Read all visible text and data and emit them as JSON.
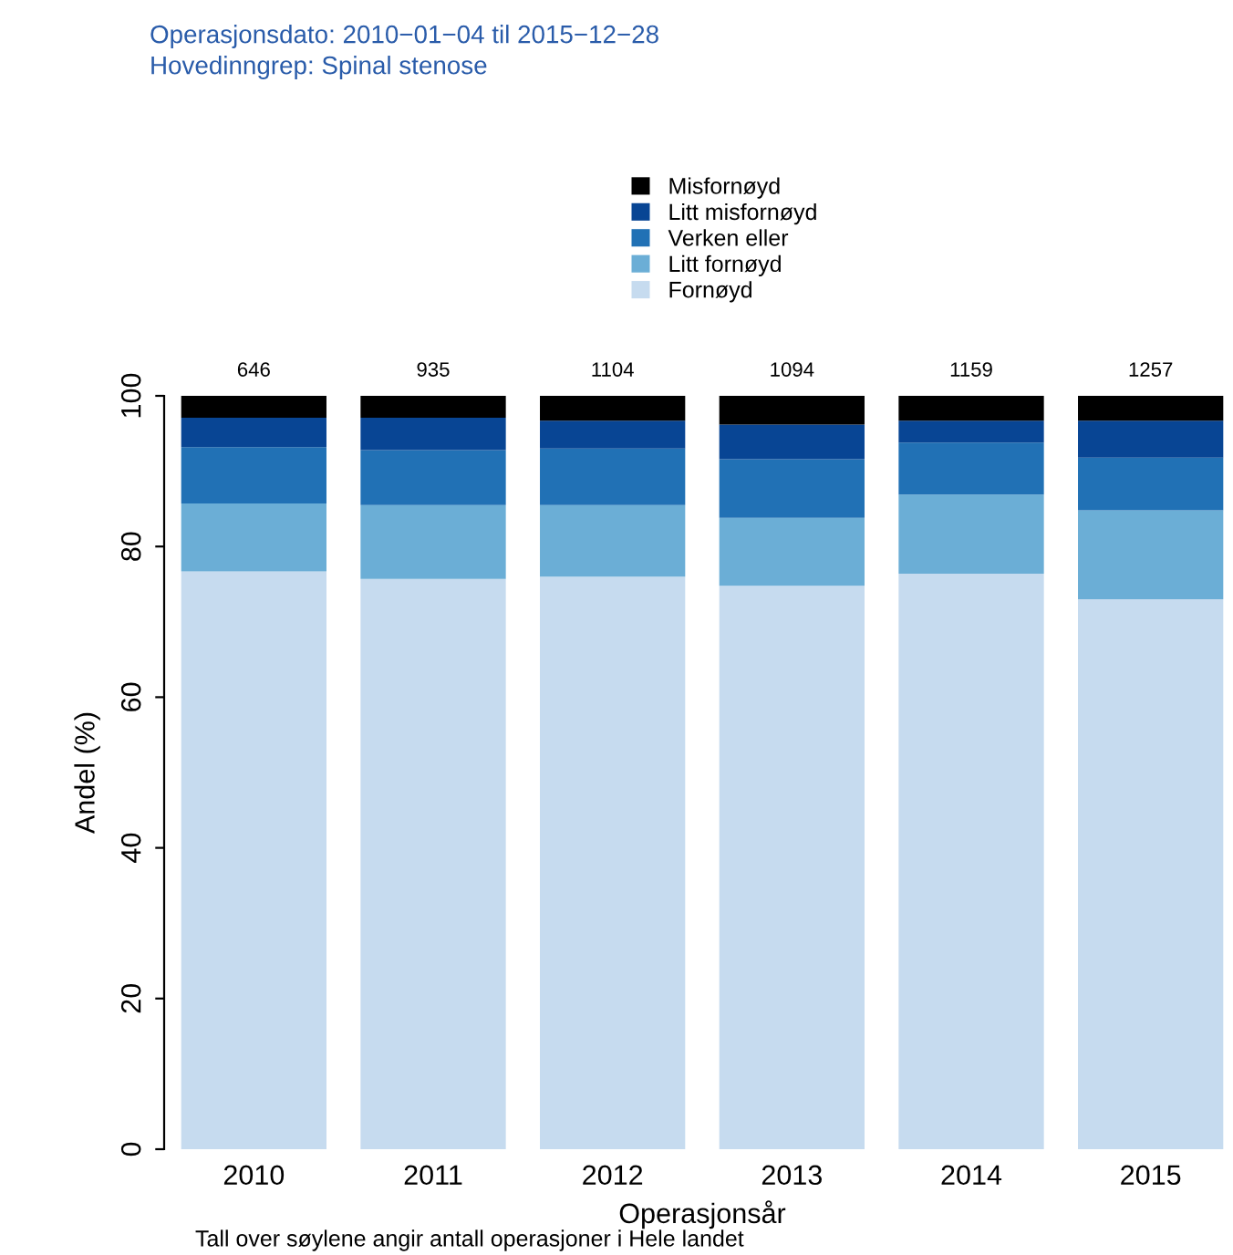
{
  "chart_data": {
    "type": "bar",
    "stacked": true,
    "title": "Operasjonsdato: 2010−01−04 til 2015−12−28",
    "subtitle": "Hovedinngrep: Spinal stenose",
    "xlabel": "Operasjonsår",
    "ylabel": "Andel (%)",
    "categories": [
      "2010",
      "2011",
      "2012",
      "2013",
      "2014",
      "2015"
    ],
    "series": [
      {
        "name": "Fornøyd",
        "color": "#c6dbef",
        "values": [
          76.7,
          75.7,
          76.0,
          74.8,
          76.4,
          73.0
        ]
      },
      {
        "name": "Litt fornøyd",
        "color": "#6baed6",
        "values": [
          9.0,
          9.8,
          9.5,
          9.0,
          10.5,
          11.8
        ]
      },
      {
        "name": "Verken eller",
        "color": "#2171b5",
        "values": [
          7.5,
          7.3,
          7.5,
          7.8,
          6.9,
          7.0
        ]
      },
      {
        "name": "Litt misfornøyd",
        "color": "#084594",
        "values": [
          3.9,
          4.3,
          3.7,
          4.6,
          2.9,
          4.9
        ]
      },
      {
        "name": "Misfornøyd",
        "color": "#000000",
        "values": [
          2.9,
          2.9,
          3.3,
          3.8,
          3.3,
          3.3
        ]
      }
    ],
    "ylim": [
      0,
      100
    ],
    "yticks": [
      0,
      20,
      40,
      60,
      80,
      100
    ],
    "grid": false,
    "legend": "top",
    "annotations": [
      {
        "text": "646",
        "x": "2010",
        "y": 100
      },
      {
        "text": "935",
        "x": "2011",
        "y": 100
      },
      {
        "text": "1104",
        "x": "2012",
        "y": 100
      },
      {
        "text": "1094",
        "x": "2013",
        "y": 100
      },
      {
        "text": "1159",
        "x": "2014",
        "y": 100
      },
      {
        "text": "1257",
        "x": "2015",
        "y": 100
      },
      "Tall over søylene angir antall operasjoner i Hele landet"
    ]
  }
}
